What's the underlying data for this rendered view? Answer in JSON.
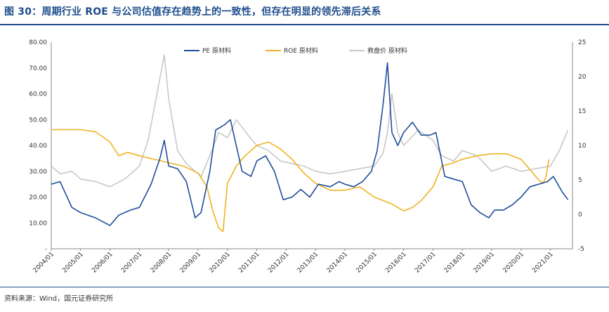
{
  "title": "图 30：周期行业 ROE 与公司估值存在趋势上的一致性，但存在明显的领先滞后关系",
  "source": "资料来源：Wind，国元证券研究所",
  "colors": {
    "pe": "#1f4e9a",
    "roe": "#f0b323",
    "pb": "#c8c8c8",
    "accent": "#1f4e8c"
  },
  "chart_data": {
    "type": "line",
    "x_ticks": [
      "2004/01",
      "2005/01",
      "2006/01",
      "2007/01",
      "2008/01",
      "2009/01",
      "2010/01",
      "2011/01",
      "2012/01",
      "2013/01",
      "2014/01",
      "2015/01",
      "2016/01",
      "2017/01",
      "2018/01",
      "2019/01",
      "2020/01",
      "2021/01"
    ],
    "y_left": {
      "ticks": [
        "80.00",
        "70.00",
        "60.00",
        "50.00",
        "40.00",
        "30.00",
        "20.00",
        "10.00",
        "-"
      ],
      "range": [
        0,
        80
      ]
    },
    "y_right": {
      "ticks": [
        "25",
        "20",
        "15",
        "10",
        "5",
        "0",
        "-5"
      ],
      "range": [
        -5,
        25
      ]
    },
    "legend_position": "top",
    "series": [
      {
        "name": "PE 原材料",
        "axis": "left",
        "x": [
          2004.0,
          2004.3,
          2004.7,
          2005.0,
          2005.5,
          2006.0,
          2006.3,
          2006.7,
          2007.0,
          2007.4,
          2007.7,
          2007.85,
          2008.0,
          2008.3,
          2008.6,
          2008.9,
          2009.1,
          2009.4,
          2009.6,
          2009.9,
          2010.1,
          2010.5,
          2010.8,
          2011.0,
          2011.3,
          2011.6,
          2011.9,
          2012.2,
          2012.5,
          2012.8,
          2013.1,
          2013.5,
          2013.8,
          2014.0,
          2014.3,
          2014.6,
          2014.9,
          2015.1,
          2015.3,
          2015.45,
          2015.6,
          2015.8,
          2016.0,
          2016.3,
          2016.6,
          2016.9,
          2017.1,
          2017.4,
          2017.7,
          2018.0,
          2018.3,
          2018.6,
          2018.9,
          2019.1,
          2019.4,
          2019.7,
          2020.0,
          2020.3,
          2020.6,
          2020.9,
          2021.1,
          2021.4,
          2021.6
        ],
        "y": [
          25,
          26,
          16,
          14,
          12,
          9,
          13,
          15,
          16,
          25,
          35,
          42,
          32,
          31,
          26,
          12,
          14,
          30,
          46,
          48,
          50,
          30,
          28,
          34,
          36,
          30,
          19,
          20,
          23,
          20,
          25,
          24,
          26,
          25,
          24,
          26,
          30,
          38,
          56,
          72,
          45,
          40,
          45,
          49,
          44,
          44,
          45,
          28,
          27,
          26,
          17,
          14,
          12,
          15,
          15,
          17,
          20,
          24,
          25,
          26,
          28,
          22,
          19
        ]
      },
      {
        "name": "ROE 原材料",
        "axis": "right",
        "x": [
          2004.0,
          2004.5,
          2005.0,
          2005.5,
          2006.0,
          2006.3,
          2006.6,
          2007.0,
          2007.5,
          2008.0,
          2008.5,
          2009.0,
          2009.3,
          2009.5,
          2009.7,
          2009.85,
          2010.0,
          2010.3,
          2010.6,
          2011.0,
          2011.4,
          2011.8,
          2012.2,
          2012.6,
          2013.0,
          2013.5,
          2014.0,
          2014.5,
          2015.0,
          2015.3,
          2015.6,
          2016.0,
          2016.3,
          2016.6,
          2017.0,
          2017.3,
          2017.7,
          2018.0,
          2018.5,
          2019.0,
          2019.5,
          2020.0,
          2020.4,
          2020.6,
          2020.75,
          2020.85,
          2020.95
        ],
        "y": [
          12.3,
          12.3,
          12.3,
          12.0,
          10.5,
          8.5,
          9.0,
          8.5,
          8.0,
          7.5,
          7.0,
          6.0,
          4.0,
          0.5,
          -2.0,
          -2.5,
          4.5,
          7.0,
          8.5,
          10.0,
          10.5,
          9.5,
          8.0,
          6.0,
          4.5,
          3.5,
          3.5,
          4.0,
          2.5,
          2.0,
          1.5,
          0.5,
          1.0,
          2.0,
          4.0,
          7.0,
          7.5,
          8.0,
          8.5,
          8.8,
          8.8,
          8.0,
          6.0,
          5.0,
          4.5,
          5.5,
          8.0
        ]
      },
      {
        "name": "救盘价 原材料",
        "axis": "left",
        "x": [
          2004.0,
          2004.3,
          2004.7,
          2005.0,
          2005.5,
          2006.0,
          2006.5,
          2007.0,
          2007.3,
          2007.6,
          2007.85,
          2008.0,
          2008.3,
          2008.6,
          2008.9,
          2009.1,
          2009.4,
          2009.7,
          2010.0,
          2010.3,
          2010.7,
          2011.0,
          2011.4,
          2011.8,
          2012.2,
          2012.6,
          2013.0,
          2013.5,
          2014.0,
          2014.5,
          2015.0,
          2015.3,
          2015.45,
          2015.6,
          2015.8,
          2016.0,
          2016.5,
          2017.0,
          2017.3,
          2017.7,
          2018.0,
          2018.5,
          2019.0,
          2019.5,
          2020.0,
          2020.5,
          2021.0,
          2021.3,
          2021.6
        ],
        "y": [
          32,
          29,
          30,
          27,
          26,
          24,
          27,
          32,
          42,
          60,
          75,
          58,
          38,
          33,
          30,
          28,
          36,
          45,
          43,
          50,
          44,
          40,
          38,
          34,
          33,
          32,
          30,
          29,
          30,
          31,
          32,
          37,
          45,
          60,
          45,
          40,
          46,
          42,
          36,
          34,
          38,
          36,
          30,
          32,
          30,
          31,
          32,
          38,
          46
        ]
      }
    ]
  }
}
